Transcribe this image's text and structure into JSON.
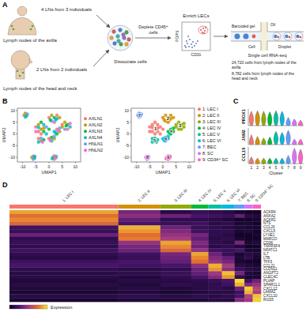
{
  "panel_a": {
    "label": "A",
    "axilla": {
      "count": "4 LNs from 3 individuals",
      "site": "Lymph nodes of the axilla"
    },
    "head_neck": {
      "count": "2 LNs from 2 individuals",
      "site": "Lymph nodes of the head and neck"
    },
    "dissociate": "Dissociate cells",
    "deplete": "Deplete CD45⁺ cells",
    "enrich": "Enrich LECs",
    "facs_y": "PDPN",
    "facs_x": "CD31",
    "droplet_parts": {
      "gel": "Barcoded gel",
      "oil": "Oil",
      "cell": "Cell",
      "droplet": "Droplet"
    },
    "method": "Single cell RNA-seq",
    "cell_counts": [
      "24,720 cells from lymph nodes of the axilla",
      "8,782 cells from lymph nodes of the head and neck"
    ]
  },
  "chart_data": [
    {
      "type": "scatter",
      "label": "B",
      "xlabel": "UMAP1",
      "ylabel": "UMAP2",
      "xlim": [
        -12,
        12
      ],
      "ylim": [
        -12,
        11
      ],
      "xticks": [
        -10,
        -5,
        0,
        5,
        10
      ],
      "yticks": [
        -10,
        -5,
        0,
        5,
        10
      ],
      "x": [
        -5,
        -4,
        -3,
        -2,
        -1,
        -4,
        -3,
        -2,
        -1,
        -5,
        -3,
        -2,
        0,
        -4,
        0,
        1,
        2,
        3,
        1,
        2,
        3,
        4,
        0.5,
        2.5,
        5,
        6,
        7,
        8,
        6,
        7,
        5,
        8,
        6.5,
        2,
        3,
        4,
        3,
        4,
        2.5,
        3.5,
        -4,
        -3,
        -2,
        -4,
        -3,
        -2.5,
        0,
        1,
        2,
        1,
        0.5,
        2,
        -9.5,
        -9,
        -8.5,
        -9,
        -8.2,
        -6.5,
        -6,
        -5.5,
        -6,
        -5.4,
        1.5,
        2,
        2.6,
        2,
        1.2,
        2.8
      ],
      "y": [
        3,
        4,
        5,
        4,
        3,
        1,
        2,
        1,
        0,
        1,
        0,
        2.5,
        2,
        2.8,
        7,
        8,
        7,
        6.5,
        5.5,
        5,
        8,
        7,
        6,
        6,
        4,
        5,
        4,
        3,
        2,
        2,
        3,
        4.5,
        3.5,
        1,
        2,
        1,
        0,
        2.5,
        0.5,
        1.5,
        -2,
        -3,
        -2.5,
        -3.5,
        -1.8,
        -3.5,
        -2,
        -1.5,
        -2,
        -3,
        -2.8,
        -1,
        8,
        8.8,
        7.8,
        7.3,
        8.5,
        -10,
        -9.5,
        -10.3,
        -10.8,
        -9.6,
        -10,
        -9.4,
        -10.2,
        -10.8,
        -10.6,
        -9.6
      ],
      "cluster": [
        0,
        0,
        0,
        0,
        0,
        0,
        0,
        0,
        0,
        0,
        0,
        0,
        0,
        0,
        1,
        1,
        1,
        1,
        1,
        1,
        1,
        1,
        1,
        1,
        2,
        2,
        2,
        2,
        2,
        2,
        2,
        2,
        2,
        3,
        3,
        3,
        3,
        3,
        3,
        3,
        4,
        4,
        4,
        4,
        4,
        4,
        5,
        5,
        5,
        5,
        5,
        5,
        6,
        6,
        6,
        6,
        6,
        7,
        7,
        7,
        7,
        7,
        8,
        8,
        8,
        8,
        8,
        8
      ],
      "sample": [
        0,
        1,
        2,
        3,
        4,
        0,
        1,
        2,
        3,
        5,
        0,
        1,
        2,
        3,
        0,
        1,
        2,
        3,
        4,
        5,
        0,
        1,
        2,
        3,
        0,
        1,
        2,
        3,
        4,
        0,
        1,
        5,
        2,
        3,
        0,
        1,
        2,
        4,
        3,
        5,
        0,
        1,
        2,
        3,
        4,
        5,
        0,
        2,
        1,
        3,
        5,
        4,
        0,
        1,
        2,
        3,
        4,
        1,
        0,
        2,
        4,
        3,
        2,
        0,
        1,
        5,
        3,
        4
      ],
      "samples": [
        {
          "name": "AXLN1",
          "color": "#F8766D"
        },
        {
          "name": "AXLN2",
          "color": "#B79F00"
        },
        {
          "name": "AXLN3",
          "color": "#00BA38"
        },
        {
          "name": "AXLN4",
          "color": "#00BFC4"
        },
        {
          "name": "HNLN1",
          "color": "#619CFF"
        },
        {
          "name": "HNLN2",
          "color": "#F564E3"
        }
      ],
      "clusters": [
        {
          "number": "1",
          "name": "1: LEC I",
          "color": "#F8766D"
        },
        {
          "number": "2",
          "name": "2: LEC II",
          "color": "#D39200"
        },
        {
          "number": "3",
          "name": "3: LEC III",
          "color": "#93AA00"
        },
        {
          "number": "4",
          "name": "4: LEC IV",
          "color": "#00BA38"
        },
        {
          "number": "5",
          "name": "5: LEC V",
          "color": "#00C19F"
        },
        {
          "number": "6",
          "name": "6: LEC VI",
          "color": "#00B9E3"
        },
        {
          "number": "7",
          "name": "7: BEC",
          "color": "#619CFF"
        },
        {
          "number": "8",
          "name": "8: SC",
          "color": "#DB72FB"
        },
        {
          "number": "9",
          "name": "9: CD34⁺ SC",
          "color": "#FF61C3"
        }
      ]
    },
    {
      "type": "violin",
      "label": "C",
      "xlabel": "Cluster",
      "categories": [
        1,
        2,
        3,
        4,
        5,
        6,
        7,
        8,
        9
      ],
      "ylim": [
        0,
        3
      ],
      "tick_labels": "x",
      "series": [
        {
          "name": "PROX1",
          "values": [
            2.6,
            2.7,
            2.6,
            2.5,
            2.7,
            2.6,
            1.5,
            1.2,
            1.0
          ],
          "median": [
            1.3,
            1.4,
            1.3,
            1.2,
            1.4,
            1.3,
            0.3,
            0.2,
            0.1
          ]
        },
        {
          "name": "JAM2",
          "values": [
            1.8,
            1.5,
            1.2,
            1.4,
            2.4,
            2.2,
            2.6,
            1.0,
            1.0
          ],
          "median": [
            0.1,
            0.1,
            0.1,
            0.1,
            1.2,
            1.0,
            1.3,
            0.05,
            0.05
          ]
        },
        {
          "name": "CCL19",
          "values": [
            1.2,
            1.0,
            1.0,
            1.0,
            1.0,
            1.0,
            1.5,
            2.8,
            2.6
          ],
          "median": [
            0.05,
            0.05,
            0.05,
            0.05,
            0.05,
            0.05,
            0.1,
            1.4,
            1.2
          ]
        }
      ]
    },
    {
      "type": "heatmap",
      "label": "D",
      "colorbar_label": "Expression",
      "cluster_sizes": [
        14500,
        5600,
        4100,
        2300,
        1800,
        1700,
        1300,
        1100,
        1100
      ],
      "rows": [
        "ACKR4",
        "ANXA2",
        "ACKR2",
        "NTS",
        "CCL20",
        "CXCL5",
        "LYVE1",
        "MARCO",
        "CD36",
        "TNFRSF4",
        "NFATC1",
        "IL7",
        "LTB",
        "TFF3",
        "CCL21",
        "CLDN11",
        "ANGPT2",
        "CLEC4C",
        "PLVAP",
        "SPARCL1",
        "CXCL12",
        "LAMA2",
        "CXCL10",
        "RGS5"
      ],
      "color_range": [
        -1,
        2.5
      ],
      "colorscale": [
        "#0d0221",
        "#4b1670",
        "#a33a83",
        "#e3702f",
        "#f5e93a"
      ],
      "cells": [
        [
          2.0,
          0.3,
          -0.6,
          -0.4,
          -0.5,
          -0.6,
          -0.8,
          -0.9,
          -0.9
        ],
        [
          1.6,
          0.5,
          0.2,
          -0.2,
          -0.3,
          -0.4,
          0.1,
          -0.6,
          -0.7
        ],
        [
          1.8,
          0.1,
          -0.5,
          -0.5,
          -0.6,
          -0.7,
          -0.9,
          -0.9,
          -0.8
        ],
        [
          1.5,
          -0.2,
          -0.4,
          -0.3,
          -0.6,
          -0.5,
          -0.8,
          -0.8,
          -0.9
        ],
        [
          -0.3,
          2.1,
          0.2,
          -0.4,
          -0.5,
          -0.6,
          -0.7,
          -0.8,
          -0.8
        ],
        [
          -0.4,
          1.9,
          0.4,
          -0.3,
          -0.5,
          -0.5,
          -0.8,
          -0.7,
          -0.9
        ],
        [
          0.2,
          1.6,
          0.6,
          0.3,
          -0.5,
          -0.6,
          -0.9,
          -0.9,
          -0.8
        ],
        [
          -0.5,
          1.7,
          0.8,
          0.1,
          -0.6,
          -0.5,
          -0.8,
          -0.9,
          -0.9
        ],
        [
          -0.4,
          0.6,
          2.0,
          0.4,
          -0.5,
          -0.6,
          0.3,
          -0.8,
          -0.7
        ],
        [
          -0.5,
          0.3,
          1.8,
          0.2,
          -0.6,
          -0.5,
          -0.7,
          -0.9,
          -0.9
        ],
        [
          -0.3,
          0.2,
          1.5,
          0.6,
          -0.3,
          -0.4,
          -0.2,
          -0.8,
          -0.8
        ],
        [
          -0.5,
          -0.3,
          0.3,
          2.0,
          0.2,
          -0.4,
          -0.8,
          -0.6,
          -0.7
        ],
        [
          -0.6,
          -0.4,
          0.2,
          1.8,
          0.4,
          0.1,
          -0.7,
          -0.5,
          -0.8
        ],
        [
          -0.3,
          -0.2,
          0.1,
          1.6,
          0.6,
          0.3,
          -0.8,
          -0.9,
          -0.9
        ],
        [
          -0.2,
          -0.3,
          -0.2,
          0.5,
          2.1,
          0.8,
          -0.6,
          -0.7,
          -0.8
        ],
        [
          -0.5,
          -0.6,
          -0.5,
          0.2,
          1.9,
          0.5,
          -0.4,
          -0.6,
          -0.7
        ],
        [
          -0.6,
          -0.5,
          -0.4,
          0.1,
          0.7,
          2.2,
          0.3,
          -0.7,
          -0.8
        ],
        [
          -0.6,
          -0.7,
          -0.5,
          -0.2,
          0.4,
          1.9,
          -0.5,
          -0.8,
          -0.8
        ],
        [
          -0.7,
          -0.6,
          -0.6,
          -0.5,
          -0.4,
          -0.2,
          2.4,
          -0.3,
          0.2
        ],
        [
          -0.6,
          -0.7,
          -0.5,
          -0.6,
          -0.5,
          -0.3,
          2.1,
          0.4,
          0.6
        ],
        [
          -0.7,
          -0.6,
          -0.7,
          -0.6,
          -0.5,
          -0.6,
          0.2,
          2.3,
          1.0
        ],
        [
          -0.8,
          -0.7,
          -0.8,
          -0.7,
          -0.6,
          -0.6,
          -0.3,
          2.1,
          0.8
        ],
        [
          -0.6,
          -0.5,
          -0.6,
          -0.5,
          -0.6,
          -0.5,
          -0.2,
          0.9,
          2.2
        ],
        [
          -0.8,
          -0.7,
          -0.7,
          -0.7,
          -0.6,
          -0.6,
          0.4,
          0.7,
          2.3
        ]
      ]
    }
  ]
}
